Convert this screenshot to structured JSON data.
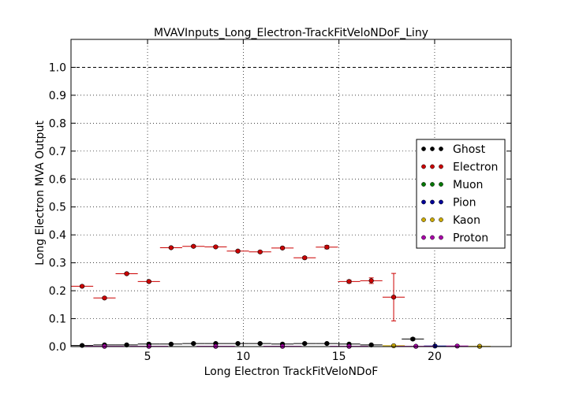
{
  "chart_data": {
    "type": "scatter",
    "title": "MVAVInputs_Long_Electron-TrackFitVeloNDoF_Liny",
    "xlabel": "Long Electron TrackFitVeloNDoF",
    "ylabel": "Long Electron MVA Output",
    "xlim": [
      1,
      24
    ],
    "ylim": [
      0,
      1.1
    ],
    "x_ticks": [
      5,
      10,
      15,
      20
    ],
    "x_tick_labels": [
      "5",
      "10",
      "15",
      "20"
    ],
    "y_ticks": [
      0.0,
      0.1,
      0.2,
      0.3,
      0.4,
      0.5,
      0.6,
      0.7,
      0.8,
      0.9,
      1.0
    ],
    "y_tick_labels": [
      "0.0",
      "0.1",
      "0.2",
      "0.3",
      "0.4",
      "0.5",
      "0.6",
      "0.7",
      "0.8",
      "0.9",
      "1.0"
    ],
    "reference_line": 1.0,
    "grid": true,
    "legend_position": "right",
    "series": [
      {
        "name": "Ghost",
        "color": "#000000",
        "x": [
          1.58,
          2.75,
          3.91,
          5.07,
          6.23,
          7.4,
          8.56,
          9.72,
          10.88,
          12.05,
          13.21,
          14.37,
          15.53,
          16.69,
          18.86
        ],
        "xerr": [
          0.58,
          0.58,
          0.58,
          0.58,
          0.58,
          0.58,
          0.58,
          0.58,
          0.58,
          0.58,
          0.58,
          0.58,
          0.58,
          0.58,
          0.58
        ],
        "y": [
          0.004,
          0.006,
          0.006,
          0.009,
          0.009,
          0.011,
          0.011,
          0.011,
          0.011,
          0.009,
          0.011,
          0.011,
          0.009,
          0.006,
          0.027
        ],
        "yerr": [
          0.002,
          0.002,
          0.002,
          0.002,
          0.002,
          0.002,
          0.002,
          0.002,
          0.002,
          0.002,
          0.002,
          0.002,
          0.002,
          0.002,
          0.004
        ]
      },
      {
        "name": "Electron",
        "color": "#cc0000",
        "x": [
          1.58,
          2.75,
          3.91,
          5.07,
          6.23,
          7.4,
          8.56,
          9.72,
          10.88,
          12.05,
          13.21,
          14.37,
          15.53,
          16.69,
          17.86
        ],
        "xerr": [
          0.58,
          0.58,
          0.58,
          0.58,
          0.58,
          0.58,
          0.58,
          0.58,
          0.58,
          0.58,
          0.58,
          0.58,
          0.58,
          0.58,
          0.58
        ],
        "y": [
          0.216,
          0.174,
          0.261,
          0.233,
          0.354,
          0.359,
          0.357,
          0.342,
          0.339,
          0.353,
          0.318,
          0.356,
          0.233,
          0.236,
          0.177
        ],
        "yerr": [
          0.003,
          0.003,
          0.003,
          0.003,
          0.003,
          0.003,
          0.003,
          0.003,
          0.003,
          0.003,
          0.004,
          0.006,
          0.005,
          0.01,
          0.085
        ]
      },
      {
        "name": "Muon",
        "color": "#007700",
        "x": [],
        "xerr": [],
        "y": [],
        "yerr": []
      },
      {
        "name": "Pion",
        "color": "#000099",
        "x": [
          20.02
        ],
        "xerr": [
          0.58
        ],
        "y": [
          0.002
        ],
        "yerr": [
          0.001
        ]
      },
      {
        "name": "Kaon",
        "color": "#ccaa00",
        "x": [
          17.86,
          22.35
        ],
        "xerr": [
          0.58,
          0.58
        ],
        "y": [
          0.003,
          0.001
        ],
        "yerr": [
          0.001,
          0.001
        ]
      },
      {
        "name": "Proton",
        "color": "#aa00aa",
        "x": [
          2.75,
          5.07,
          8.56,
          12.05,
          15.53,
          19.02,
          21.18
        ],
        "xerr": [
          1.0,
          1.0,
          1.0,
          1.0,
          1.0,
          1.0,
          0.58
        ],
        "y": [
          0.001,
          0.001,
          0.001,
          0.001,
          0.001,
          0.001,
          0.002
        ],
        "yerr": [
          0.0,
          0.0,
          0.0,
          0.0,
          0.0,
          0.0,
          0.001
        ]
      }
    ]
  }
}
